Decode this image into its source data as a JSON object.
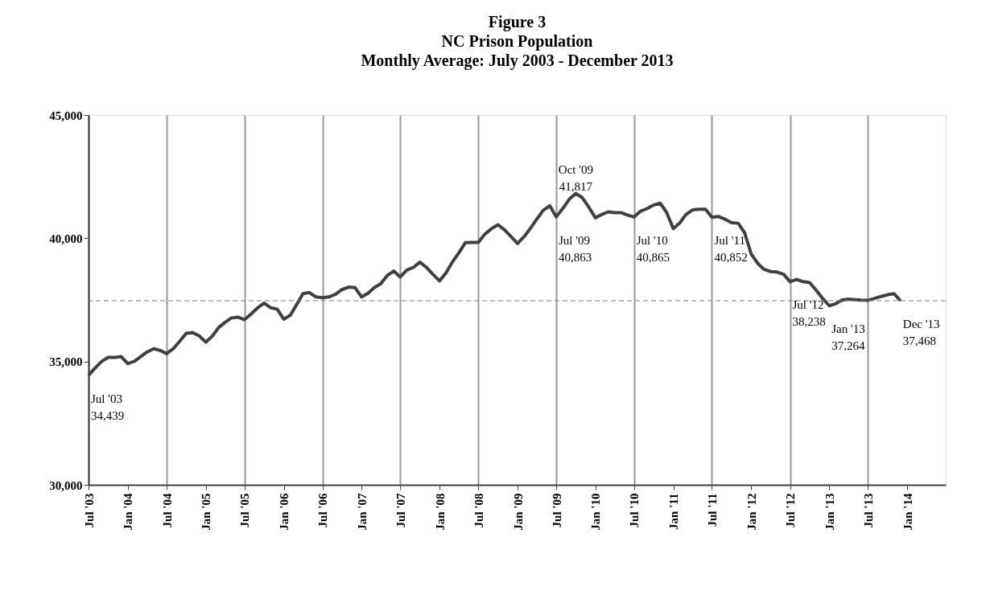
{
  "chart_data": {
    "type": "line",
    "title": "Figure 3\nNC Prison Population\nMonthly Average: July 2003 - December 2013",
    "x": [
      "2003-07",
      "2003-08",
      "2003-09",
      "2003-10",
      "2003-11",
      "2003-12",
      "2004-01",
      "2004-02",
      "2004-03",
      "2004-04",
      "2004-05",
      "2004-06",
      "2004-07",
      "2004-08",
      "2004-09",
      "2004-10",
      "2004-11",
      "2004-12",
      "2005-01",
      "2005-02",
      "2005-03",
      "2005-04",
      "2005-05",
      "2005-06",
      "2005-07",
      "2005-08",
      "2005-09",
      "2005-10",
      "2005-11",
      "2005-12",
      "2006-01",
      "2006-02",
      "2006-03",
      "2006-04",
      "2006-05",
      "2006-06",
      "2006-07",
      "2006-08",
      "2006-09",
      "2006-10",
      "2006-11",
      "2006-12",
      "2007-01",
      "2007-02",
      "2007-03",
      "2007-04",
      "2007-05",
      "2007-06",
      "2007-07",
      "2007-08",
      "2007-09",
      "2007-10",
      "2007-11",
      "2007-12",
      "2008-01",
      "2008-02",
      "2008-03",
      "2008-04",
      "2008-05",
      "2008-06",
      "2008-07",
      "2008-08",
      "2008-09",
      "2008-10",
      "2008-11",
      "2008-12",
      "2009-01",
      "2009-02",
      "2009-03",
      "2009-04",
      "2009-05",
      "2009-06",
      "2009-07",
      "2009-08",
      "2009-09",
      "2009-10",
      "2009-11",
      "2009-12",
      "2010-01",
      "2010-02",
      "2010-03",
      "2010-04",
      "2010-05",
      "2010-06",
      "2010-07",
      "2010-08",
      "2010-09",
      "2010-10",
      "2010-11",
      "2010-12",
      "2011-01",
      "2011-02",
      "2011-03",
      "2011-04",
      "2011-05",
      "2011-06",
      "2011-07",
      "2011-08",
      "2011-09",
      "2011-10",
      "2011-11",
      "2011-12",
      "2012-01",
      "2012-02",
      "2012-03",
      "2012-04",
      "2012-05",
      "2012-06",
      "2012-07",
      "2012-08",
      "2012-09",
      "2012-10",
      "2012-11",
      "2012-12",
      "2013-01",
      "2013-02",
      "2013-03",
      "2013-04",
      "2013-05",
      "2013-06",
      "2013-07",
      "2013-08",
      "2013-09",
      "2013-10",
      "2013-11",
      "2013-12"
    ],
    "series": [
      {
        "color": "#404040",
        "values": [
          34439,
          34740,
          35010,
          35170,
          35170,
          35200,
          34920,
          35010,
          35200,
          35390,
          35520,
          35450,
          35320,
          35520,
          35830,
          36150,
          36170,
          36040,
          35790,
          36040,
          36370,
          36590,
          36770,
          36800,
          36700,
          36930,
          37180,
          37370,
          37180,
          37130,
          36720,
          36880,
          37290,
          37750,
          37800,
          37620,
          37590,
          37620,
          37730,
          37920,
          38020,
          38000,
          37620,
          37780,
          38000,
          38160,
          38490,
          38670,
          38430,
          38710,
          38820,
          39030,
          38820,
          38540,
          38270,
          38600,
          39030,
          39410,
          39820,
          39830,
          39830,
          40170,
          40390,
          40550,
          40340,
          40070,
          39790,
          40070,
          40390,
          40770,
          41130,
          41320,
          40863,
          41210,
          41590,
          41817,
          41640,
          41260,
          40830,
          40970,
          41070,
          41040,
          41040,
          40940,
          40865,
          41100,
          41210,
          41350,
          41420,
          41040,
          40390,
          40630,
          40960,
          41150,
          41180,
          41180,
          40852,
          40880,
          40770,
          40630,
          40610,
          40230,
          39360,
          38980,
          38740,
          38650,
          38630,
          38540,
          38238,
          38330,
          38240,
          38200,
          37890,
          37560,
          37264,
          37350,
          37490,
          37530,
          37510,
          37490,
          37480,
          37560,
          37640,
          37710,
          37750,
          37468
        ]
      }
    ],
    "xlim": [
      "2003-07",
      "2014-07"
    ],
    "xticks": [
      {
        "value": "2003-07",
        "label": "Jul '03"
      },
      {
        "value": "2004-01",
        "label": "Jan '04"
      },
      {
        "value": "2004-07",
        "label": "Jul '04"
      },
      {
        "value": "2005-01",
        "label": "Jan '05"
      },
      {
        "value": "2005-07",
        "label": "Jul '05"
      },
      {
        "value": "2006-01",
        "label": "Jan '06"
      },
      {
        "value": "2006-07",
        "label": "Jul '06"
      },
      {
        "value": "2007-01",
        "label": "Jan '07"
      },
      {
        "value": "2007-07",
        "label": "Jul '07"
      },
      {
        "value": "2008-01",
        "label": "Jan '08"
      },
      {
        "value": "2008-07",
        "label": "Jul '08"
      },
      {
        "value": "2009-01",
        "label": "Jan '09"
      },
      {
        "value": "2009-07",
        "label": "Jul '09"
      },
      {
        "value": "2010-01",
        "label": "Jan '10"
      },
      {
        "value": "2010-07",
        "label": "Jul '10"
      },
      {
        "value": "2011-01",
        "label": "Jan '11"
      },
      {
        "value": "2011-07",
        "label": "Jul '11"
      },
      {
        "value": "2012-01",
        "label": "Jan '12"
      },
      {
        "value": "2012-07",
        "label": "Jul '12"
      },
      {
        "value": "2013-01",
        "label": "Jan '13"
      },
      {
        "value": "2013-07",
        "label": "Jul '13"
      },
      {
        "value": "2014-01",
        "label": "Jan '14"
      }
    ],
    "ylim": [
      30000,
      45000
    ],
    "yticks": [
      {
        "value": 30000,
        "label": "30,000"
      },
      {
        "value": 35000,
        "label": "35,000"
      },
      {
        "value": 40000,
        "label": "40,000"
      },
      {
        "value": 45000,
        "label": "45,000"
      }
    ],
    "grid": "x",
    "marker": "none",
    "line_style": "solid",
    "ref_lines": [
      {
        "axis": "y",
        "value": 37468,
        "color": "#808080",
        "line_style": "dashed"
      }
    ],
    "annotations": [
      {
        "text": "Jul '03\n34,439",
        "x": "2003-07",
        "y": 34439
      },
      {
        "text": "Jul '09\n40,863",
        "x": "2009-07",
        "y": 40863
      },
      {
        "text": "Oct '09\n41,817",
        "x": "2009-10",
        "y": 41817
      },
      {
        "text": "Jul '10\n40,865",
        "x": "2010-07",
        "y": 40865
      },
      {
        "text": "Jul '11\n40,852",
        "x": "2011-07",
        "y": 40852
      },
      {
        "text": "Jul '12\n38,238",
        "x": "2012-07",
        "y": 38238
      },
      {
        "text": "Jan '13\n37,264",
        "x": "2013-01",
        "y": 37264
      },
      {
        "text": "Dec '13\n37,468",
        "x": "2013-12",
        "y": 37468
      }
    ]
  }
}
